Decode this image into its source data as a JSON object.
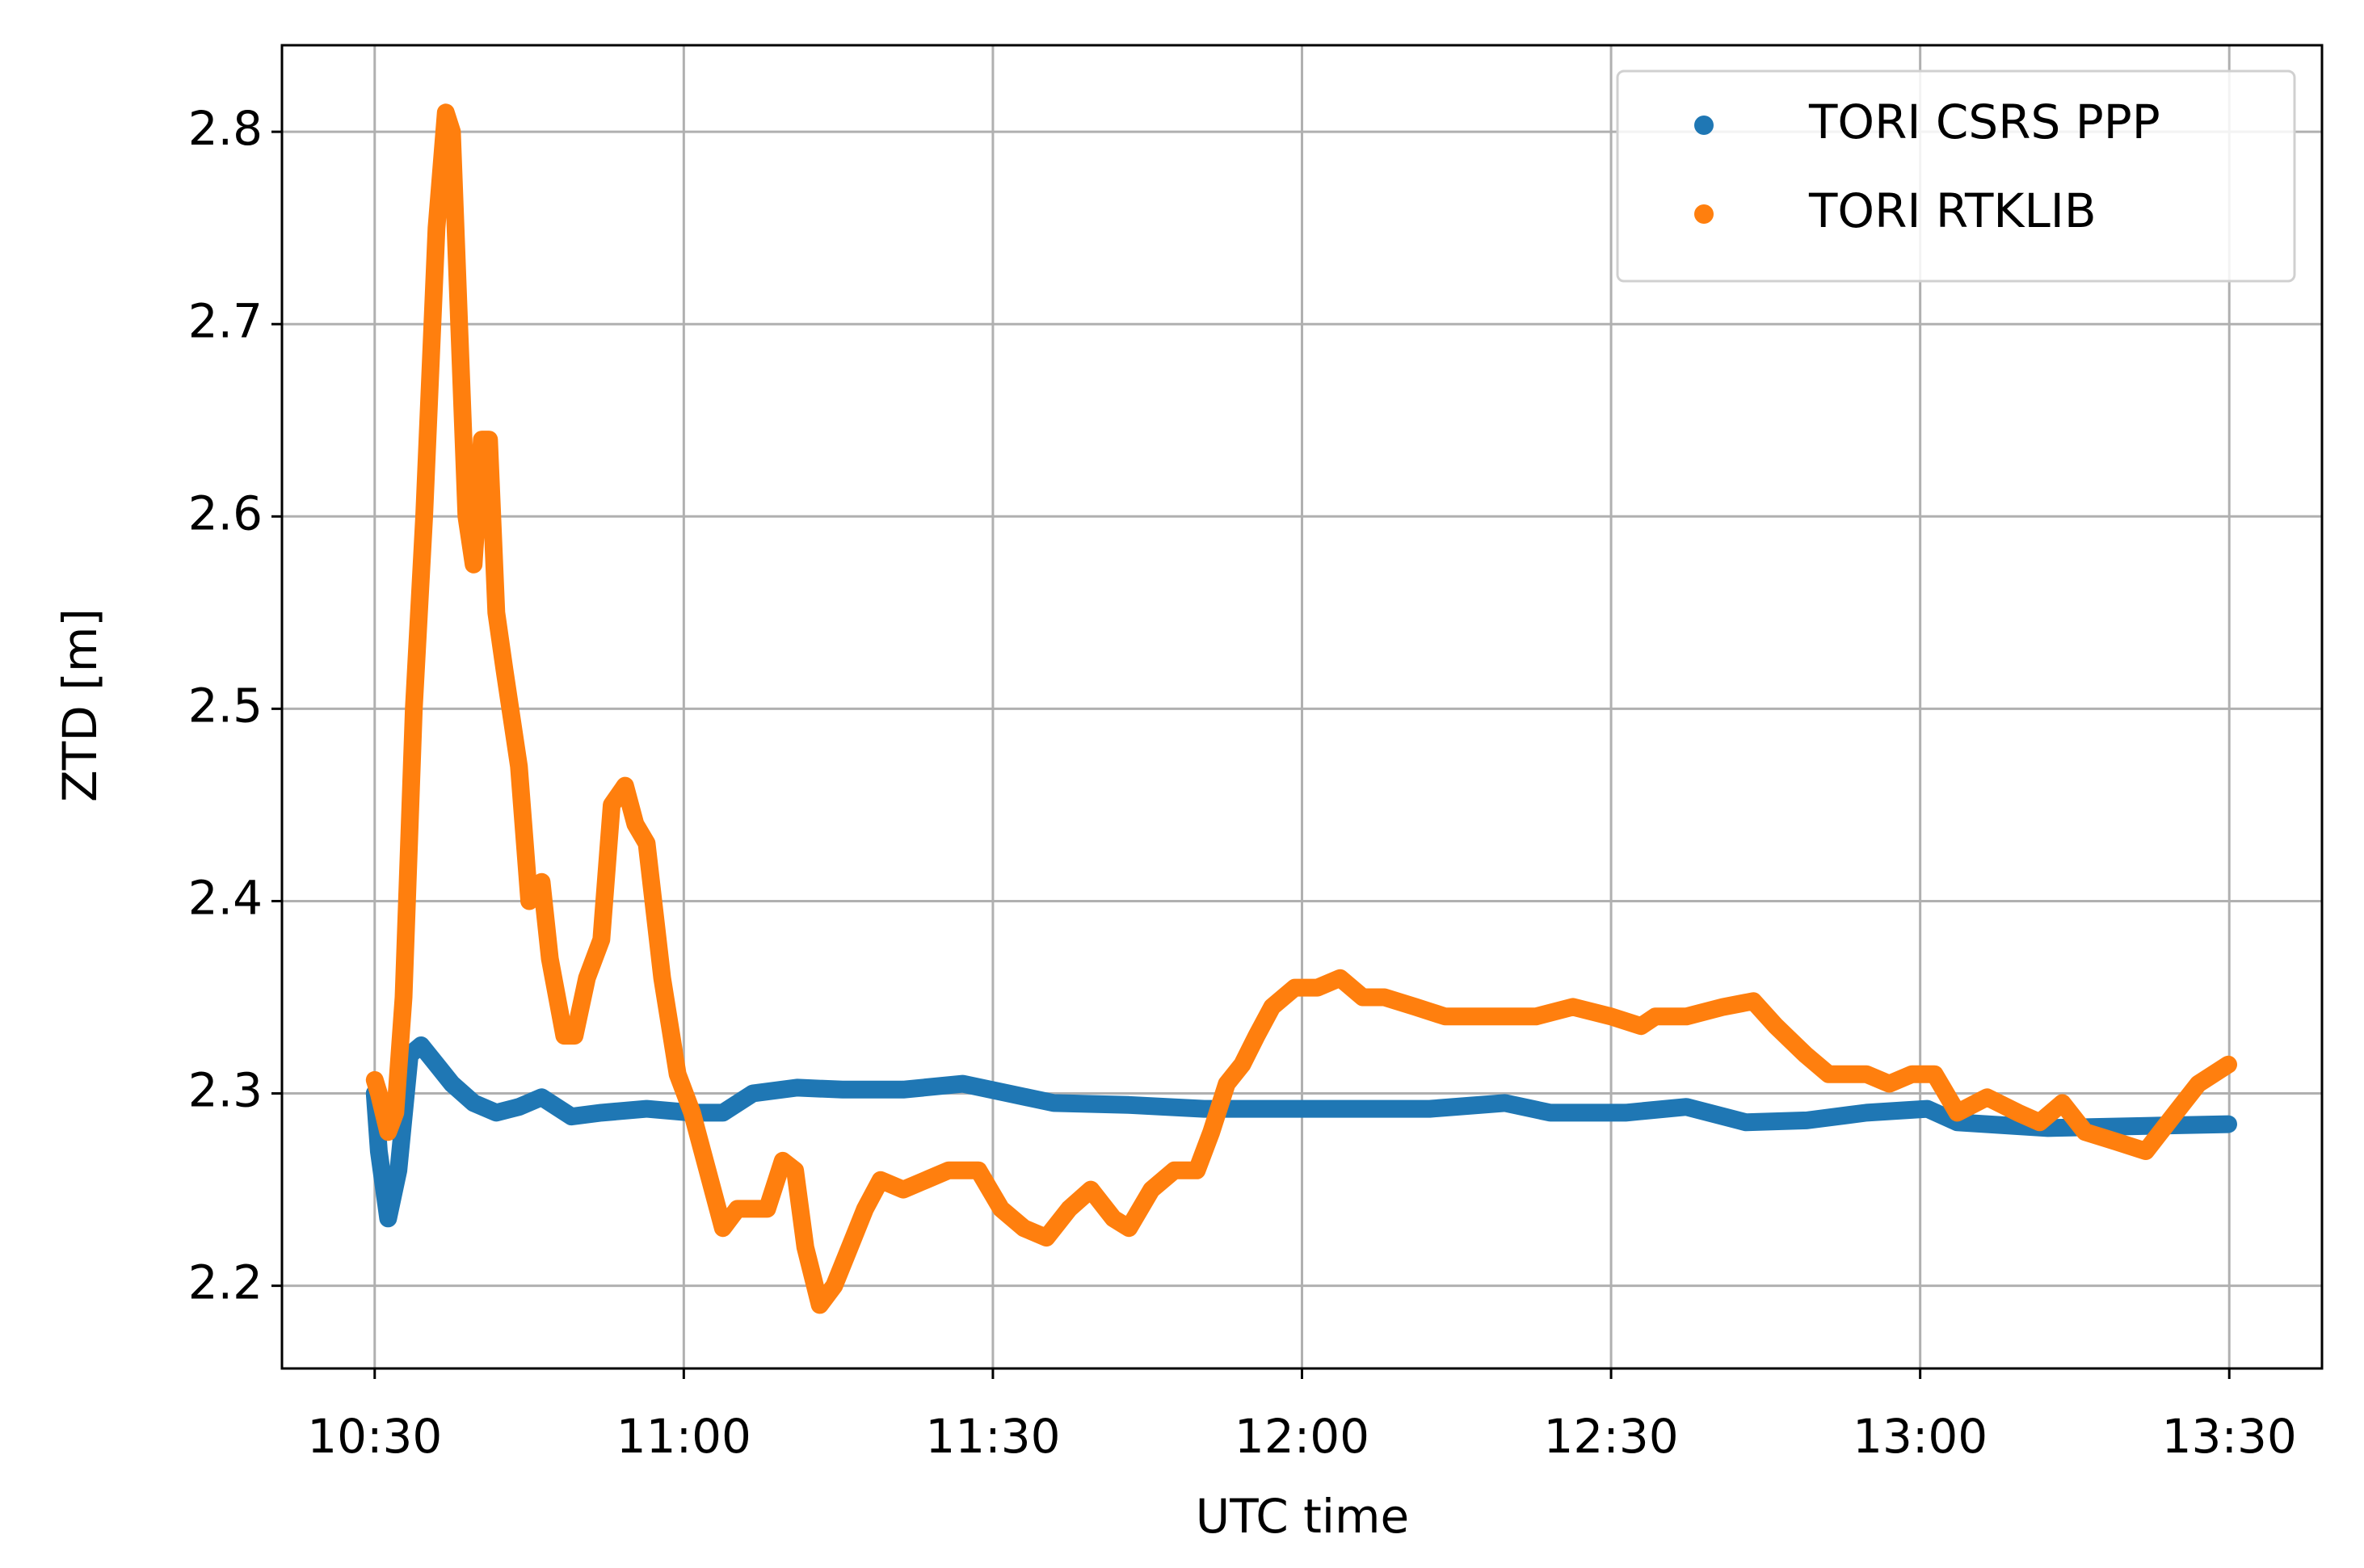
{
  "chart_data": {
    "type": "line",
    "xlabel": "UTC time",
    "ylabel": "ZTD [m]",
    "xlim": [
      621,
      819
    ],
    "ylim": [
      2.157,
      2.845
    ],
    "xticks": [
      {
        "value": 630,
        "label": "10:30"
      },
      {
        "value": 660,
        "label": "11:00"
      },
      {
        "value": 690,
        "label": "11:30"
      },
      {
        "value": 720,
        "label": "12:00"
      },
      {
        "value": 750,
        "label": "12:30"
      },
      {
        "value": 780,
        "label": "13:00"
      },
      {
        "value": 810,
        "label": "13:30"
      }
    ],
    "yticks": [
      2.2,
      2.3,
      2.4,
      2.5,
      2.6,
      2.7,
      2.8
    ],
    "grid": true,
    "legend": "upper right",
    "series": [
      {
        "name": "TORI CSRS PPP",
        "color": "#1f77b4",
        "x": [
          630,
          630.4,
          631.3,
          632.3,
          633.4,
          634.5,
          636,
          637.5,
          639.6,
          641.8,
          644,
          646.2,
          649.1,
          652,
          656.4,
          660.8,
          663.8,
          666.7,
          671,
          675.4,
          681.3,
          687.1,
          691.5,
          695.9,
          703.2,
          710.5,
          717.8,
          725.1,
          732.4,
          739.7,
          744.1,
          751.4,
          757.3,
          763.1,
          769,
          774.8,
          780.7,
          783.6,
          792.4,
          801.1,
          809.9
        ],
        "values": [
          2.3,
          2.27,
          2.235,
          2.26,
          2.32,
          2.325,
          2.315,
          2.305,
          2.295,
          2.29,
          2.293,
          2.298,
          2.288,
          2.29,
          2.292,
          2.29,
          2.29,
          2.3,
          2.303,
          2.302,
          2.302,
          2.305,
          2.3,
          2.295,
          2.294,
          2.292,
          2.292,
          2.292,
          2.292,
          2.295,
          2.29,
          2.29,
          2.293,
          2.285,
          2.286,
          2.29,
          2.292,
          2.285,
          2.282,
          2.283,
          2.284
        ]
      },
      {
        "name": "TORI RTKLIB",
        "color": "#ff7f0e",
        "x": [
          630,
          630.4,
          631.3,
          632,
          632.8,
          633.8,
          634.8,
          636,
          636.9,
          637.5,
          638.2,
          638.9,
          639.6,
          640.4,
          641.1,
          641.8,
          642.6,
          644,
          645,
          646.2,
          647,
          648.4,
          649.4,
          650.6,
          652,
          653,
          654.3,
          655.3,
          656.4,
          657.9,
          659.4,
          660.8,
          662.3,
          663.8,
          665.2,
          666.7,
          668.1,
          669.6,
          670.8,
          671.8,
          673.2,
          674.6,
          676.1,
          677.6,
          679.1,
          681.3,
          683.5,
          685.7,
          688.6,
          690.8,
          693,
          695.2,
          697.4,
          699.5,
          701.7,
          703.2,
          705.4,
          707.6,
          709.8,
          711.2,
          712.7,
          714.2,
          715.6,
          717.1,
          719.3,
          721.5,
          723.7,
          725.9,
          728,
          731,
          733.9,
          736.8,
          739.7,
          742.7,
          746.3,
          750,
          752.9,
          754.3,
          757.3,
          760.9,
          763.8,
          766,
          768.9,
          771.1,
          774.8,
          777,
          779.2,
          781.4,
          783.6,
          786.5,
          789.5,
          791.6,
          793.8,
          796,
          799,
          801.9,
          804.8,
          807,
          809.9
        ],
        "values": [
          2.307,
          2.3,
          2.28,
          2.29,
          2.35,
          2.5,
          2.6,
          2.75,
          2.81,
          2.8,
          2.7,
          2.6,
          2.575,
          2.64,
          2.64,
          2.55,
          2.52,
          2.47,
          2.4,
          2.41,
          2.37,
          2.33,
          2.33,
          2.36,
          2.38,
          2.45,
          2.46,
          2.44,
          2.43,
          2.36,
          2.31,
          2.29,
          2.26,
          2.23,
          2.24,
          2.24,
          2.24,
          2.265,
          2.26,
          2.22,
          2.19,
          2.2,
          2.22,
          2.24,
          2.255,
          2.25,
          2.255,
          2.26,
          2.26,
          2.24,
          2.23,
          2.225,
          2.24,
          2.25,
          2.235,
          2.23,
          2.25,
          2.26,
          2.26,
          2.28,
          2.305,
          2.315,
          2.33,
          2.345,
          2.355,
          2.355,
          2.36,
          2.35,
          2.35,
          2.345,
          2.34,
          2.34,
          2.34,
          2.34,
          2.345,
          2.34,
          2.335,
          2.34,
          2.34,
          2.345,
          2.348,
          2.335,
          2.32,
          2.31,
          2.31,
          2.305,
          2.31,
          2.31,
          2.29,
          2.298,
          2.29,
          2.285,
          2.295,
          2.28,
          2.275,
          2.27,
          2.29,
          2.305,
          2.315
        ]
      }
    ]
  }
}
